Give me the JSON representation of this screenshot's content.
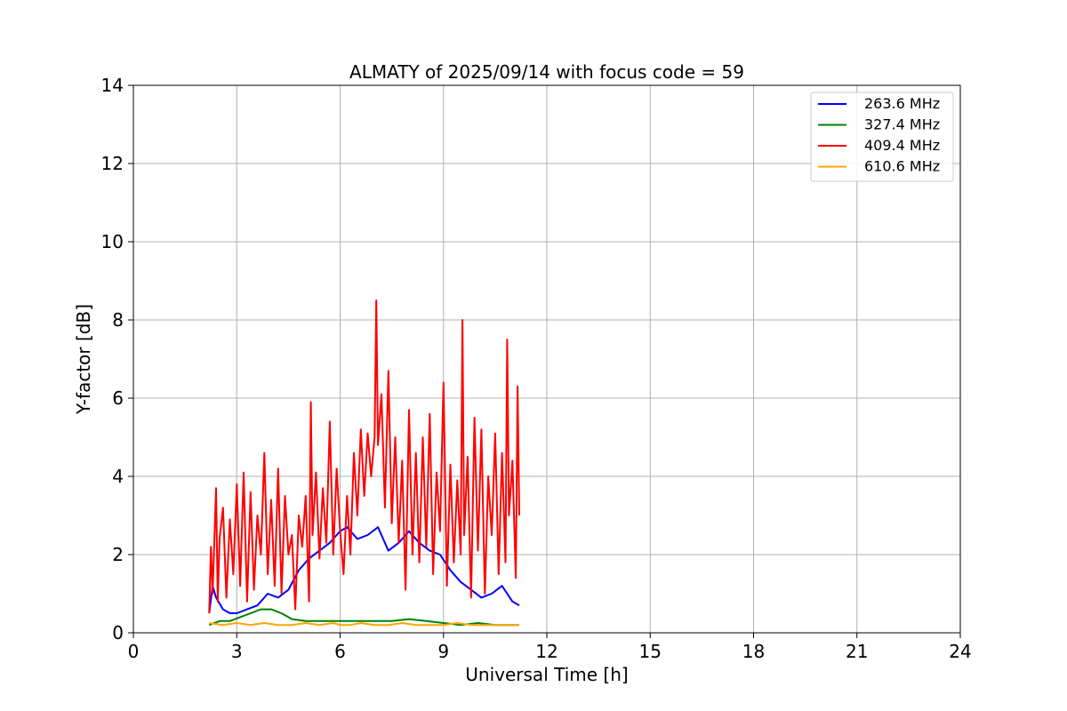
{
  "chart_data": {
    "type": "line",
    "title": "ALMATY of 2025/09/14 with focus code = 59",
    "xlabel": "Universal Time [h]",
    "ylabel": "Y-factor [dB]",
    "xlim": [
      0,
      24
    ],
    "ylim": [
      0,
      14
    ],
    "xticks": [
      "0",
      "3",
      "6",
      "9",
      "12",
      "15",
      "18",
      "21",
      "24"
    ],
    "yticks": [
      "0",
      "2",
      "4",
      "6",
      "8",
      "10",
      "12",
      "14"
    ],
    "grid": true,
    "legend_position": "top-right",
    "series": [
      {
        "name": "263.6 MHz",
        "color": "#0000ff",
        "x": [
          2.2,
          2.3,
          2.4,
          2.6,
          2.8,
          3.0,
          3.3,
          3.6,
          3.9,
          4.2,
          4.5,
          4.8,
          5.1,
          5.4,
          5.7,
          6.0,
          6.2,
          6.5,
          6.8,
          7.1,
          7.4,
          7.7,
          8.0,
          8.3,
          8.6,
          8.9,
          9.2,
          9.5,
          9.8,
          10.1,
          10.4,
          10.7,
          11.0,
          11.2
        ],
        "y": [
          0.5,
          1.2,
          0.9,
          0.6,
          0.5,
          0.5,
          0.6,
          0.7,
          1.0,
          0.9,
          1.1,
          1.6,
          1.9,
          2.1,
          2.3,
          2.6,
          2.7,
          2.4,
          2.5,
          2.7,
          2.1,
          2.3,
          2.6,
          2.3,
          2.1,
          2.0,
          1.6,
          1.3,
          1.1,
          0.9,
          1.0,
          1.2,
          0.8,
          0.7
        ]
      },
      {
        "name": "327.4 MHz",
        "color": "#008000",
        "x": [
          2.2,
          2.5,
          2.8,
          3.1,
          3.4,
          3.7,
          4.0,
          4.3,
          4.6,
          5.0,
          5.5,
          6.0,
          6.5,
          7.0,
          7.5,
          8.0,
          8.5,
          9.0,
          9.5,
          10.0,
          10.5,
          11.0,
          11.2
        ],
        "y": [
          0.2,
          0.3,
          0.3,
          0.4,
          0.5,
          0.6,
          0.6,
          0.5,
          0.35,
          0.3,
          0.3,
          0.3,
          0.3,
          0.3,
          0.3,
          0.35,
          0.3,
          0.25,
          0.2,
          0.25,
          0.2,
          0.2,
          0.2
        ]
      },
      {
        "name": "409.4 MHz",
        "color": "#ff0000",
        "x": [
          2.2,
          2.25,
          2.3,
          2.4,
          2.45,
          2.5,
          2.6,
          2.7,
          2.8,
          2.9,
          3.0,
          3.1,
          3.2,
          3.3,
          3.4,
          3.5,
          3.6,
          3.7,
          3.8,
          3.9,
          4.0,
          4.1,
          4.2,
          4.3,
          4.4,
          4.5,
          4.6,
          4.7,
          4.8,
          4.9,
          5.0,
          5.1,
          5.15,
          5.2,
          5.3,
          5.4,
          5.5,
          5.6,
          5.7,
          5.8,
          5.9,
          6.0,
          6.1,
          6.2,
          6.3,
          6.4,
          6.5,
          6.6,
          6.7,
          6.8,
          6.9,
          7.0,
          7.05,
          7.1,
          7.2,
          7.3,
          7.4,
          7.5,
          7.6,
          7.7,
          7.8,
          7.9,
          8.0,
          8.1,
          8.2,
          8.3,
          8.4,
          8.5,
          8.6,
          8.7,
          8.8,
          8.9,
          9.0,
          9.1,
          9.2,
          9.3,
          9.4,
          9.5,
          9.55,
          9.6,
          9.7,
          9.8,
          9.9,
          10.0,
          10.1,
          10.2,
          10.3,
          10.4,
          10.5,
          10.6,
          10.7,
          10.8,
          10.85,
          10.9,
          11.0,
          11.1,
          11.15,
          11.2
        ],
        "y": [
          0.5,
          2.2,
          1.0,
          3.7,
          0.8,
          2.4,
          3.2,
          0.9,
          2.9,
          1.5,
          3.8,
          1.2,
          4.1,
          0.8,
          3.6,
          1.1,
          3.0,
          2.0,
          4.6,
          1.5,
          3.4,
          1.2,
          4.2,
          1.0,
          3.5,
          2.0,
          2.5,
          0.6,
          3.0,
          2.2,
          3.5,
          0.8,
          5.9,
          2.5,
          4.1,
          1.9,
          3.7,
          2.3,
          5.4,
          2.0,
          4.2,
          2.6,
          1.5,
          3.5,
          2.0,
          4.6,
          3.0,
          5.2,
          3.5,
          5.1,
          4.0,
          5.0,
          8.5,
          4.8,
          6.1,
          3.2,
          6.7,
          2.8,
          5.0,
          2.3,
          4.4,
          1.1,
          5.7,
          2.0,
          4.6,
          1.8,
          5.0,
          2.2,
          5.6,
          1.5,
          4.1,
          2.6,
          6.4,
          1.2,
          4.3,
          1.8,
          3.9,
          2.0,
          8.0,
          2.5,
          4.5,
          0.9,
          5.5,
          2.1,
          5.2,
          1.0,
          4.0,
          2.5,
          5.1,
          1.5,
          4.6,
          1.8,
          7.5,
          3.0,
          4.4,
          1.4,
          6.3,
          3.0
        ]
      },
      {
        "name": "610.6 MHz",
        "color": "#ffa500",
        "x": [
          2.2,
          2.6,
          3.0,
          3.4,
          3.8,
          4.2,
          4.6,
          5.0,
          5.4,
          5.8,
          6.0,
          6.3,
          6.6,
          7.0,
          7.4,
          7.8,
          8.2,
          8.6,
          9.0,
          9.4,
          9.8,
          10.2,
          10.6,
          11.0,
          11.2
        ],
        "y": [
          0.25,
          0.2,
          0.25,
          0.2,
          0.25,
          0.2,
          0.2,
          0.25,
          0.2,
          0.25,
          0.2,
          0.2,
          0.25,
          0.2,
          0.2,
          0.25,
          0.2,
          0.2,
          0.2,
          0.25,
          0.2,
          0.2,
          0.2,
          0.2,
          0.2
        ]
      }
    ]
  }
}
